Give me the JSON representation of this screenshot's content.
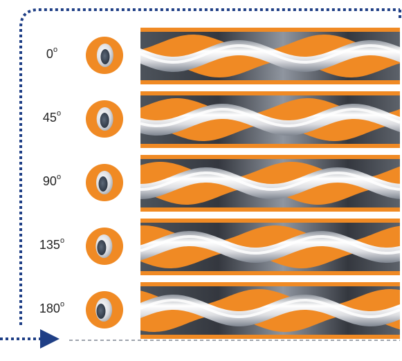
{
  "colors": {
    "orange": "#f08a24",
    "silver": "#dcdde1",
    "dark": "#2a3340",
    "arrow": "#1f3f86"
  },
  "rows": [
    {
      "angle": "0",
      "unit": "o",
      "phase_deg": 0
    },
    {
      "angle": "45",
      "unit": "o",
      "phase_deg": 45
    },
    {
      "angle": "90",
      "unit": "o",
      "phase_deg": 90
    },
    {
      "angle": "135",
      "unit": "o",
      "phase_deg": 135
    },
    {
      "angle": "180",
      "unit": "o",
      "phase_deg": 180
    }
  ]
}
